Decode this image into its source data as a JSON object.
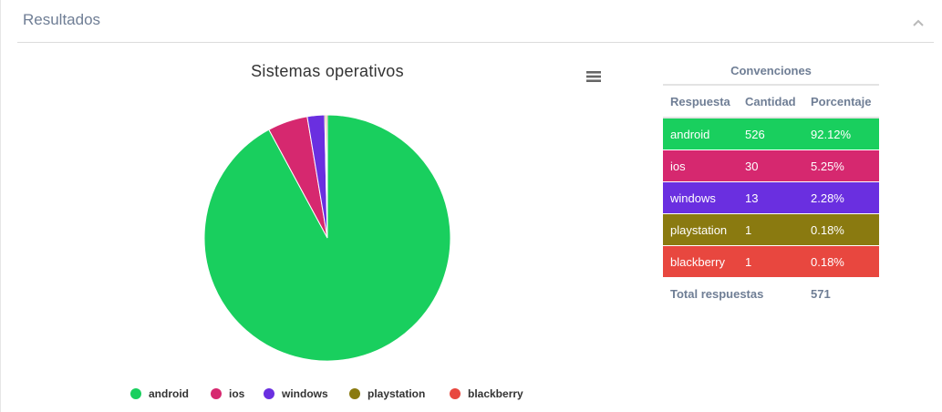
{
  "panel": {
    "title": "Resultados",
    "collapse_icon": "chevron-up-icon"
  },
  "chart_data": {
    "type": "pie",
    "title": "Sistemas operativos",
    "menu_icon": "hamburger-menu-icon",
    "slices": [
      {
        "name": "android",
        "value": 526,
        "color": "#19cf5e"
      },
      {
        "name": "ios",
        "value": 30,
        "color": "#d6286f"
      },
      {
        "name": "windows",
        "value": 13,
        "color": "#6a2fe0"
      },
      {
        "name": "playstation",
        "value": 1,
        "color": "#8a7a10"
      },
      {
        "name": "blackberry",
        "value": 1,
        "color": "#e8473f"
      }
    ],
    "legend_position": "bottom"
  },
  "table": {
    "caption": "Convenciones",
    "headers": [
      "Respuesta",
      "Cantidad",
      "Porcentaje"
    ],
    "rows": [
      {
        "label": "android",
        "count": "526",
        "pct": "92.12%",
        "color": "#19cf5e"
      },
      {
        "label": "ios",
        "count": "30",
        "pct": "5.25%",
        "color": "#d6286f"
      },
      {
        "label": "windows",
        "count": "13",
        "pct": "2.28%",
        "color": "#6a2fe0"
      },
      {
        "label": "playstation",
        "count": "1",
        "pct": "0.18%",
        "color": "#8a7a10"
      },
      {
        "label": "blackberry",
        "count": "1",
        "pct": "0.18%",
        "color": "#e8473f"
      }
    ],
    "total_label": "Total respuestas",
    "total_value": "571"
  }
}
